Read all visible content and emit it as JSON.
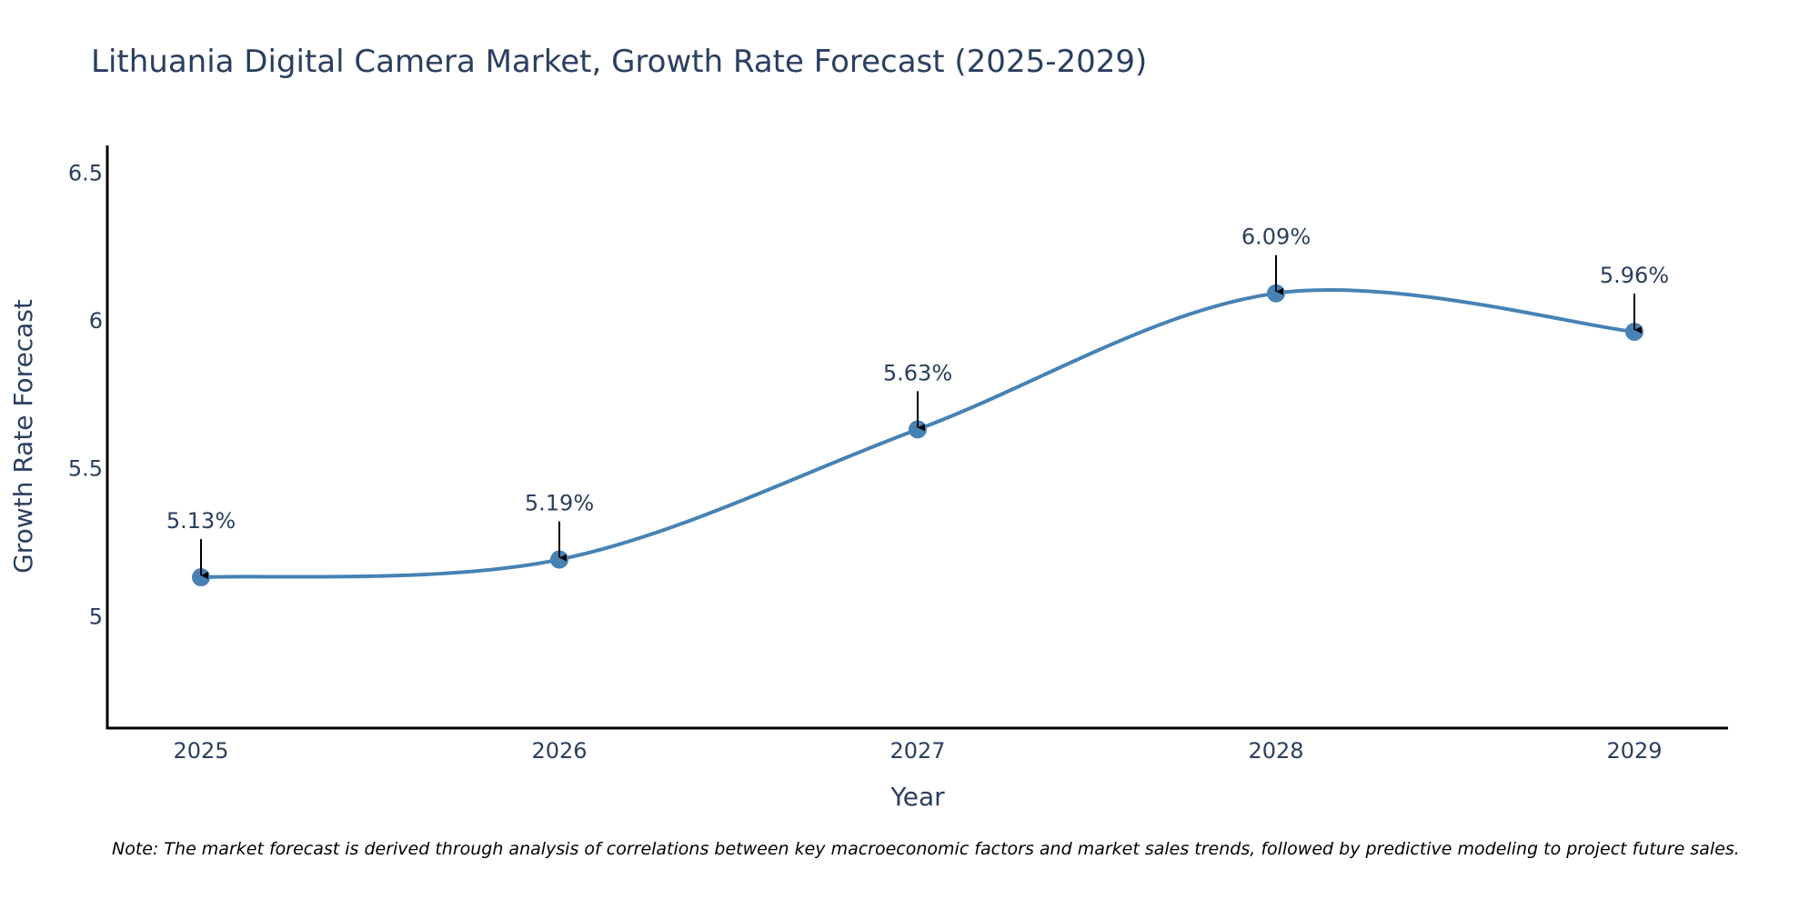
{
  "chart_data": {
    "type": "line",
    "title": "Lithuania Digital Camera Market, Growth Rate Forecast (2025-2029)",
    "xlabel": "Year",
    "ylabel": "Growth Rate Forecast",
    "categories": [
      "2025",
      "2026",
      "2027",
      "2028",
      "2029"
    ],
    "values": [
      5.13,
      5.19,
      5.63,
      6.09,
      5.96
    ],
    "data_labels": [
      "5.13%",
      "5.19%",
      "5.63%",
      "6.09%",
      "5.96%"
    ],
    "ylim": [
      4.62,
      6.59
    ],
    "yticks": [
      5,
      5.5,
      6,
      6.5
    ],
    "ytick_labels": [
      "5",
      "5.5",
      "6",
      "6.5"
    ],
    "line_shape": "spline",
    "grid": false,
    "line_color": "#4682b4",
    "marker_color": "#4682b4",
    "arrow_color": "#000000",
    "axis_color": "#000000",
    "note": "Note: The market forecast is derived through analysis of correlations between key macroeconomic factors and market sales trends, followed by predictive modeling to project future sales."
  }
}
